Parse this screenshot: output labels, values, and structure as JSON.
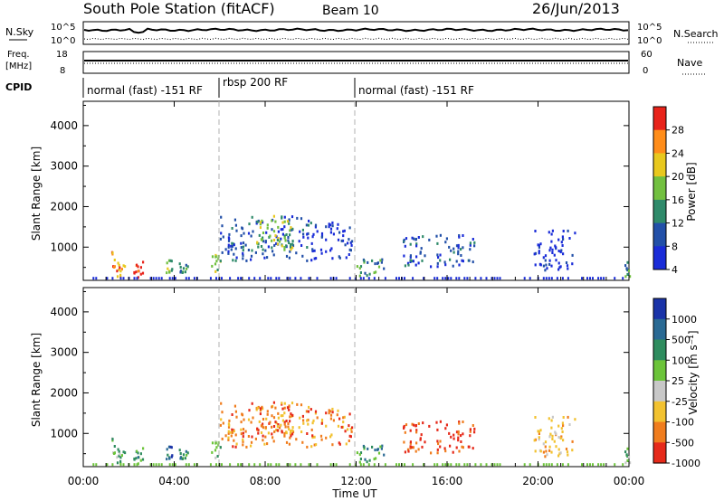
{
  "header": {
    "title": "South Pole Station (fitACF)",
    "beam": "Beam 10",
    "date": "26/Jun/2013"
  },
  "top_panels": {
    "nsky_label": "N.Sky",
    "nsky_ticks": [
      "10^5",
      "10^0"
    ],
    "nsearch_label": "N.Search",
    "nsearch_ticks": [
      "10^5",
      "10^0"
    ],
    "freq_label_1": "Freq.",
    "freq_label_2": "[MHz]",
    "freq_ticks": [
      "18",
      "8"
    ],
    "nave_label": "Nave",
    "nave_ticks": [
      "60",
      "0"
    ],
    "cpid_label": "CPID",
    "cpid_segments": [
      {
        "start_hour": 0,
        "end_hour": 6,
        "label": "normal (fast) -151 RF"
      },
      {
        "start_hour": 6,
        "end_hour": 12,
        "label": "rbsp 200 RF"
      },
      {
        "start_hour": 12,
        "end_hour": 24,
        "label": "normal (fast) -151 RF"
      }
    ]
  },
  "chart_data": [
    {
      "type": "heatmap",
      "panel": "power",
      "ylabel": "Slant Range [km]",
      "yticks": [
        1000,
        2000,
        3000,
        4000
      ],
      "ylim": [
        180,
        4600
      ],
      "xlim": [
        0,
        24
      ],
      "colorbar_label": "Power [dB]",
      "colorbar_ticks": [
        "4",
        "8",
        "12",
        "16",
        "20",
        "24",
        "28"
      ],
      "colorbar_colors": [
        "#1a2cd8",
        "#2250a8",
        "#2f8a6a",
        "#72c040",
        "#e8c81e",
        "#ff8d1a",
        "#e8231a"
      ],
      "regions": [
        {
          "t0": 1.2,
          "t1": 1.8,
          "r0": 200,
          "r1": 900,
          "level": 5
        },
        {
          "t0": 2.2,
          "t1": 2.6,
          "r0": 200,
          "r1": 650,
          "level": 6
        },
        {
          "t0": 3.6,
          "t1": 3.9,
          "r0": 350,
          "r1": 700,
          "level": 3
        },
        {
          "t0": 4.2,
          "t1": 4.6,
          "r0": 350,
          "r1": 650,
          "level": 2
        },
        {
          "t0": 5.6,
          "t1": 6.0,
          "r0": 350,
          "r1": 800,
          "level": 3
        },
        {
          "t0": 6.0,
          "t1": 10.0,
          "r0": 650,
          "r1": 1750,
          "level": 1
        },
        {
          "t0": 7.6,
          "t1": 9.2,
          "r0": 900,
          "r1": 1800,
          "level": 3
        },
        {
          "t0": 10.0,
          "t1": 11.8,
          "r0": 700,
          "r1": 1600,
          "level": 0
        },
        {
          "t0": 12.0,
          "t1": 13.2,
          "r0": 250,
          "r1": 700,
          "level": 2
        },
        {
          "t0": 14.0,
          "t1": 17.2,
          "r0": 500,
          "r1": 1300,
          "level": 1
        },
        {
          "t0": 19.8,
          "t1": 21.6,
          "r0": 400,
          "r1": 1400,
          "level": 0
        },
        {
          "t0": 23.8,
          "t1": 24.0,
          "r0": 250,
          "r1": 700,
          "level": 2
        }
      ]
    },
    {
      "type": "heatmap",
      "panel": "velocity",
      "ylabel": "Slant Range [km]",
      "yticks": [
        1000,
        2000,
        3000,
        4000
      ],
      "ylim": [
        180,
        4600
      ],
      "xlim": [
        0,
        24
      ],
      "xticks": [
        "00:00",
        "04:00",
        "08:00",
        "12:00",
        "16:00",
        "20:00",
        "00:00"
      ],
      "xlabel": "Time UT",
      "colorbar_label": "Velocity [m s⁻¹]",
      "colorbar_ticks": [
        "1000",
        "500",
        "100",
        "25",
        "-25",
        "-100",
        "-500",
        "-1000"
      ],
      "colorbar_colors": [
        "#1a33a8",
        "#2a6a94",
        "#2e8c5e",
        "#6cc43a",
        "#c8c8c8",
        "#f2c230",
        "#f07d1e",
        "#e62a1a"
      ],
      "regions": [
        {
          "t0": 1.2,
          "t1": 1.8,
          "r0": 200,
          "r1": 900,
          "level": 3
        },
        {
          "t0": 2.2,
          "t1": 2.6,
          "r0": 200,
          "r1": 650,
          "level": 2
        },
        {
          "t0": 3.6,
          "t1": 3.9,
          "r0": 350,
          "r1": 700,
          "level": 1
        },
        {
          "t0": 4.2,
          "t1": 4.6,
          "r0": 350,
          "r1": 650,
          "level": 2
        },
        {
          "t0": 5.6,
          "t1": 6.0,
          "r0": 350,
          "r1": 800,
          "level": 3
        },
        {
          "t0": 6.0,
          "t1": 10.0,
          "r0": 650,
          "r1": 1750,
          "level": 6
        },
        {
          "t0": 7.6,
          "t1": 9.2,
          "r0": 900,
          "r1": 1800,
          "level": 6
        },
        {
          "t0": 10.0,
          "t1": 11.8,
          "r0": 700,
          "r1": 1600,
          "level": 6
        },
        {
          "t0": 12.0,
          "t1": 13.2,
          "r0": 250,
          "r1": 700,
          "level": 2
        },
        {
          "t0": 14.0,
          "t1": 17.2,
          "r0": 500,
          "r1": 1300,
          "level": 7
        },
        {
          "t0": 19.8,
          "t1": 21.6,
          "r0": 400,
          "r1": 1400,
          "level": 5
        },
        {
          "t0": 23.8,
          "t1": 24.0,
          "r0": 250,
          "r1": 700,
          "level": 3
        }
      ]
    }
  ]
}
